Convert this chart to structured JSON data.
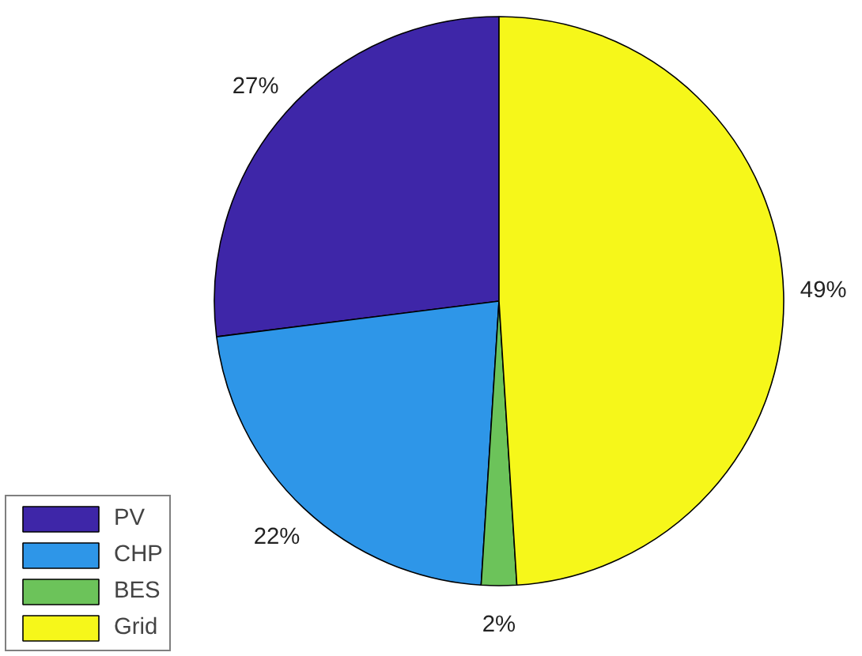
{
  "chart_data": {
    "type": "pie",
    "categories": [
      "PV",
      "CHP",
      "BES",
      "Grid"
    ],
    "values": [
      27,
      22,
      2,
      49
    ],
    "value_labels": [
      "27%",
      "22%",
      "2%",
      "49%"
    ],
    "colors": [
      "#3e26a8",
      "#2e96e8",
      "#6cc35a",
      "#f6f71a"
    ],
    "legend": "bottom left"
  }
}
